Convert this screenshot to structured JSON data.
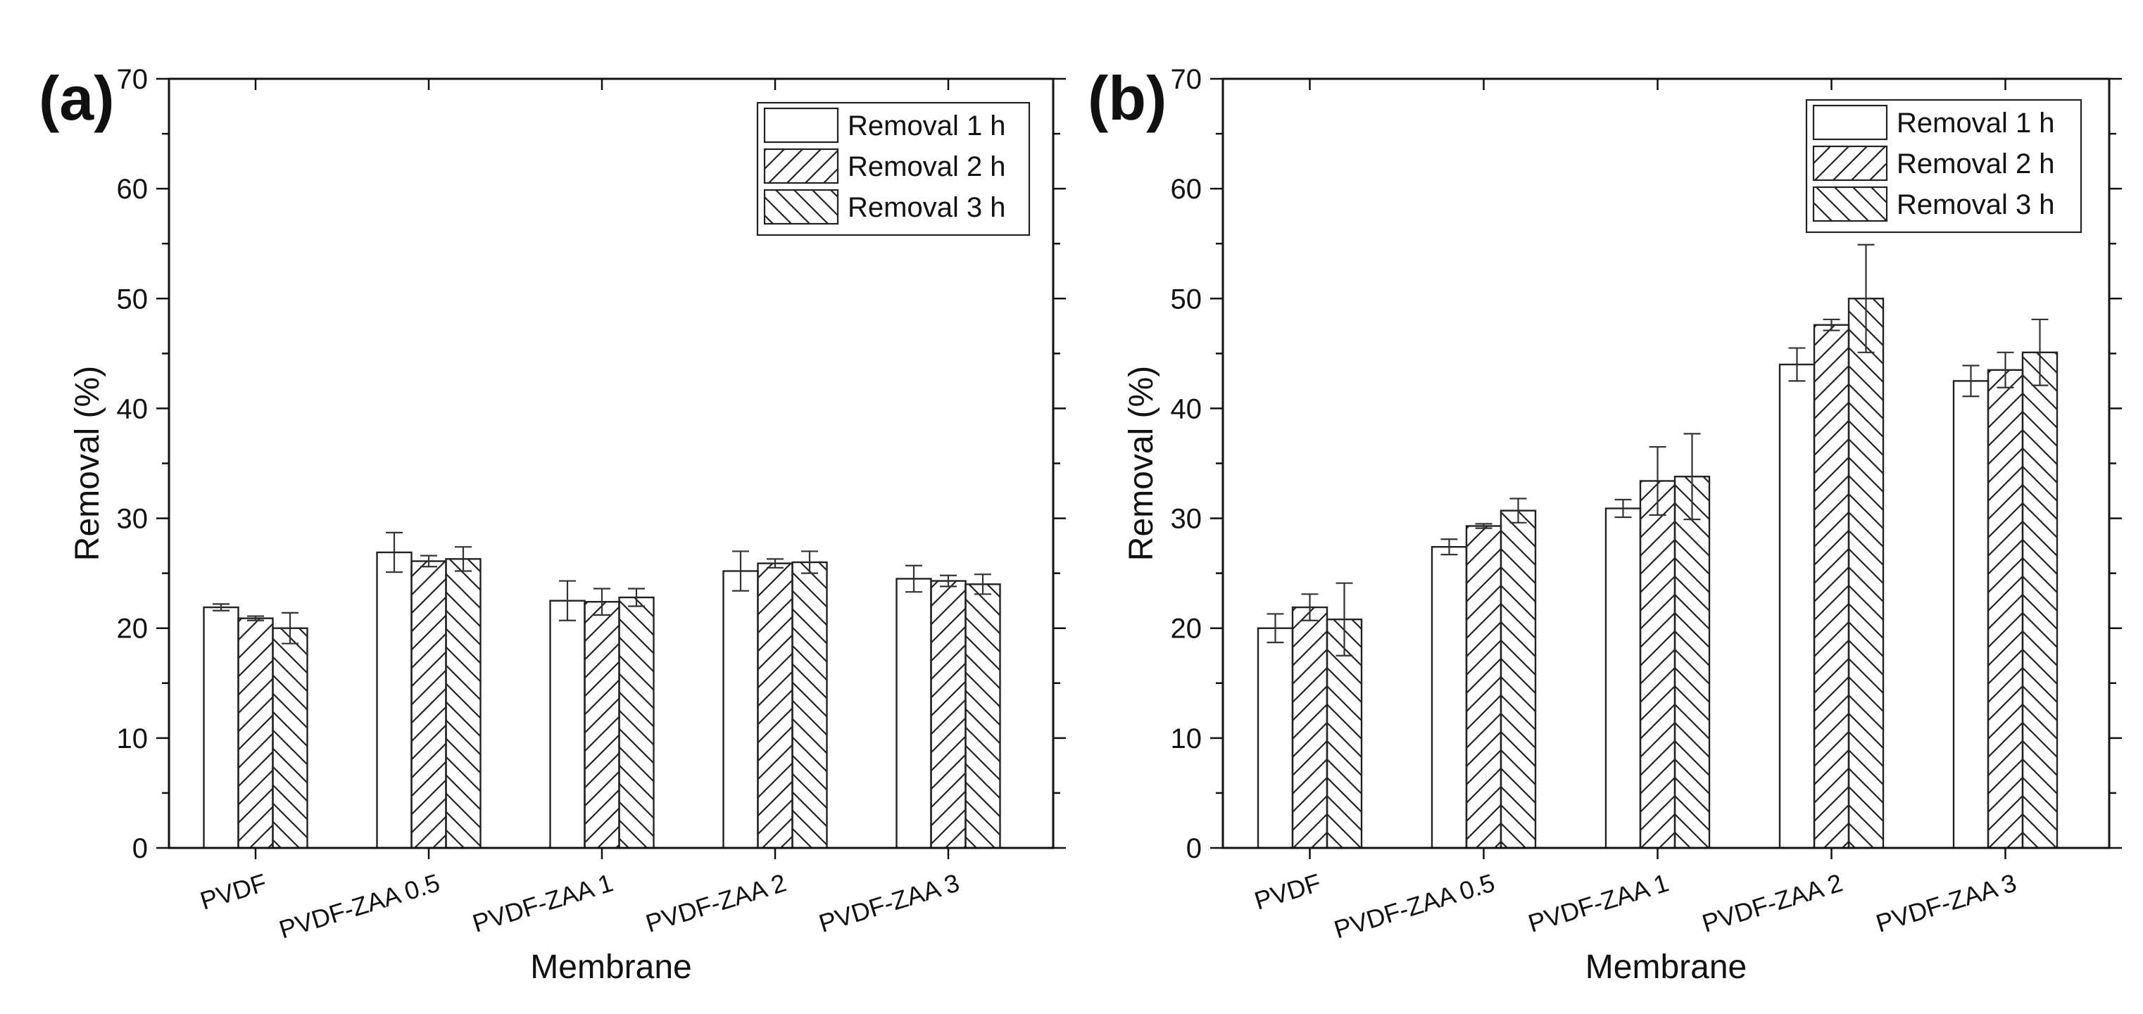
{
  "chart_data": [
    {
      "type": "bar",
      "panel_label": "(a)",
      "xlabel": "Membrane",
      "ylabel": "Removal (%)",
      "ylim": [
        0,
        70
      ],
      "yticks": [
        "0",
        "10",
        "20",
        "30",
        "40",
        "50",
        "60",
        "70"
      ],
      "legend_position": "top-right",
      "categories": [
        "PVDF",
        "PVDF-ZAA 0.5",
        "PVDF-ZAA 1",
        "PVDF-ZAA 2",
        "PVDF-ZAA 3"
      ],
      "series": [
        {
          "name": "Removal 1 h",
          "pattern": "none",
          "values": [
            21.9,
            26.9,
            22.5,
            25.2,
            24.5
          ],
          "errors": [
            0.3,
            1.8,
            1.8,
            1.8,
            1.2
          ]
        },
        {
          "name": "Removal 2 h",
          "pattern": "forward",
          "values": [
            20.9,
            26.1,
            22.4,
            25.9,
            24.3
          ],
          "errors": [
            0.2,
            0.5,
            1.2,
            0.4,
            0.5
          ]
        },
        {
          "name": "Removal 3 h",
          "pattern": "backward",
          "values": [
            20.0,
            26.3,
            22.8,
            26.0,
            24.0
          ],
          "errors": [
            1.4,
            1.1,
            0.8,
            1.0,
            0.9
          ]
        }
      ]
    },
    {
      "type": "bar",
      "panel_label": "(b)",
      "xlabel": "Membrane",
      "ylabel": "Removal (%)",
      "ylim": [
        0,
        70
      ],
      "yticks": [
        "0",
        "10",
        "20",
        "30",
        "40",
        "50",
        "60",
        "70"
      ],
      "legend_position": "top-right",
      "categories": [
        "PVDF",
        "PVDF-ZAA 0.5",
        "PVDF-ZAA 1",
        "PVDF-ZAA 2",
        "PVDF-ZAA 3"
      ],
      "series": [
        {
          "name": "Removal 1 h",
          "pattern": "none",
          "values": [
            20.0,
            27.4,
            30.9,
            44.0,
            42.5
          ],
          "errors": [
            1.3,
            0.7,
            0.8,
            1.5,
            1.4
          ]
        },
        {
          "name": "Removal 2 h",
          "pattern": "forward",
          "values": [
            21.9,
            29.3,
            33.4,
            47.6,
            43.5
          ],
          "errors": [
            1.2,
            0.2,
            3.1,
            0.5,
            1.6
          ]
        },
        {
          "name": "Removal 3 h",
          "pattern": "backward",
          "values": [
            20.8,
            30.7,
            33.8,
            50.0,
            45.1
          ],
          "errors": [
            3.3,
            1.1,
            3.9,
            4.9,
            3.0
          ]
        }
      ]
    }
  ]
}
